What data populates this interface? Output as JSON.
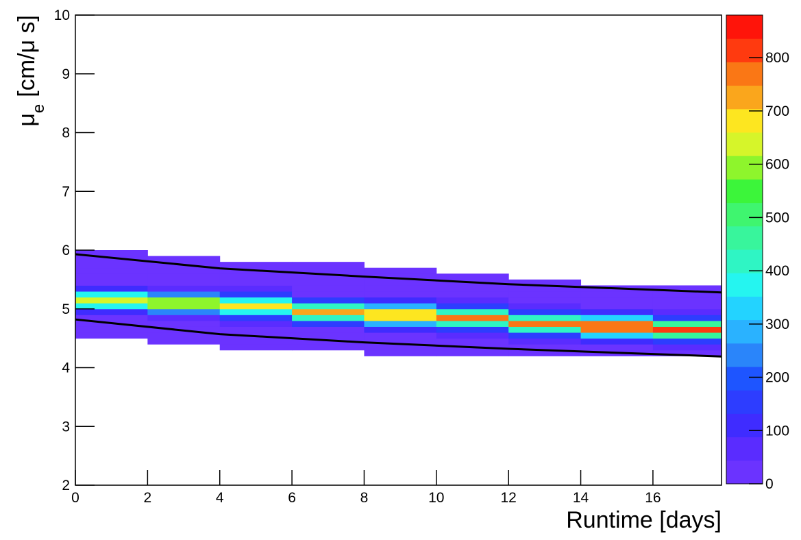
{
  "chart_data": {
    "type": "heatmap",
    "xlabel": "Runtime [days]",
    "ylabel": {
      "symbol": "μ",
      "subscript": "e",
      "unit": "[cm/μ s]"
    },
    "xlim": [
      0,
      17.9
    ],
    "ylim": [
      2,
      10
    ],
    "xticks": [
      0,
      2,
      4,
      6,
      8,
      10,
      12,
      14,
      16
    ],
    "yticks": [
      2,
      3,
      4,
      5,
      6,
      7,
      8,
      9,
      10
    ],
    "zlim": [
      0,
      880
    ],
    "zticks": [
      0,
      100,
      200,
      300,
      400,
      500,
      600,
      700,
      800
    ],
    "palette": [
      "#6b33ff",
      "#5a2cff",
      "#3f2cff",
      "#2d3dff",
      "#1e55ff",
      "#2a85fa",
      "#2ab2ff",
      "#23d3ff",
      "#25f5f0",
      "#2ff5c4",
      "#38f59c",
      "#3ff56f",
      "#3cf53a",
      "#8ef52c",
      "#d6f52a",
      "#fde620",
      "#faa61c",
      "#fa7715",
      "#ff3a0f",
      "#ff140a"
    ],
    "x_bins": [
      0,
      2,
      4,
      6,
      8,
      10,
      12,
      14,
      16,
      17.9
    ],
    "y_bins": [
      4.2,
      4.3,
      4.4,
      4.5,
      4.6,
      4.7,
      4.8,
      4.9,
      5.0,
      5.1,
      5.2,
      5.3,
      5.4,
      5.5,
      5.6,
      5.7,
      5.8,
      5.9,
      6.0
    ],
    "counts": [
      [
        0,
        0,
        0,
        0,
        1,
        1,
        2,
        8,
        9
      ],
      [
        0,
        0,
        1,
        1,
        2,
        2,
        8,
        20,
        50
      ],
      [
        0,
        1,
        2,
        2,
        4,
        8,
        45,
        100,
        170
      ],
      [
        1,
        2,
        3,
        8,
        20,
        45,
        160,
        330,
        450
      ],
      [
        2,
        4,
        10,
        40,
        90,
        160,
        430,
        760,
        820
      ],
      [
        8,
        20,
        45,
        150,
        280,
        420,
        780,
        760,
        450
      ],
      [
        40,
        80,
        140,
        400,
        660,
        760,
        430,
        330,
        170
      ],
      [
        130,
        250,
        390,
        720,
        660,
        420,
        160,
        100,
        50
      ],
      [
        360,
        600,
        700,
        400,
        280,
        160,
        45,
        20,
        9
      ],
      [
        650,
        600,
        390,
        150,
        90,
        45,
        8,
        4,
        2
      ],
      [
        360,
        250,
        140,
        40,
        20,
        8,
        2,
        2,
        1
      ],
      [
        130,
        80,
        45,
        8,
        4,
        2,
        1,
        1,
        1
      ],
      [
        40,
        20,
        10,
        2,
        2,
        1,
        1,
        0,
        0
      ],
      [
        8,
        4,
        3,
        1,
        1,
        1,
        0,
        0,
        0
      ],
      [
        2,
        2,
        2,
        1,
        1,
        0,
        0,
        0,
        0
      ],
      [
        1,
        1,
        1,
        1,
        0,
        0,
        0,
        0,
        0
      ],
      [
        1,
        1,
        0,
        0,
        0,
        0,
        0,
        0,
        0
      ],
      [
        1,
        0,
        0,
        0,
        0,
        0,
        0,
        0,
        0
      ]
    ],
    "curves": [
      {
        "color": "#000000",
        "x": [
          0,
          4,
          8,
          12,
          17.9
        ],
        "y": [
          5.93,
          5.69,
          5.55,
          5.42,
          5.28
        ]
      },
      {
        "color": "#000000",
        "x": [
          0,
          4,
          8,
          12,
          17.9
        ],
        "y": [
          4.82,
          4.57,
          4.43,
          4.32,
          4.19
        ]
      }
    ]
  }
}
